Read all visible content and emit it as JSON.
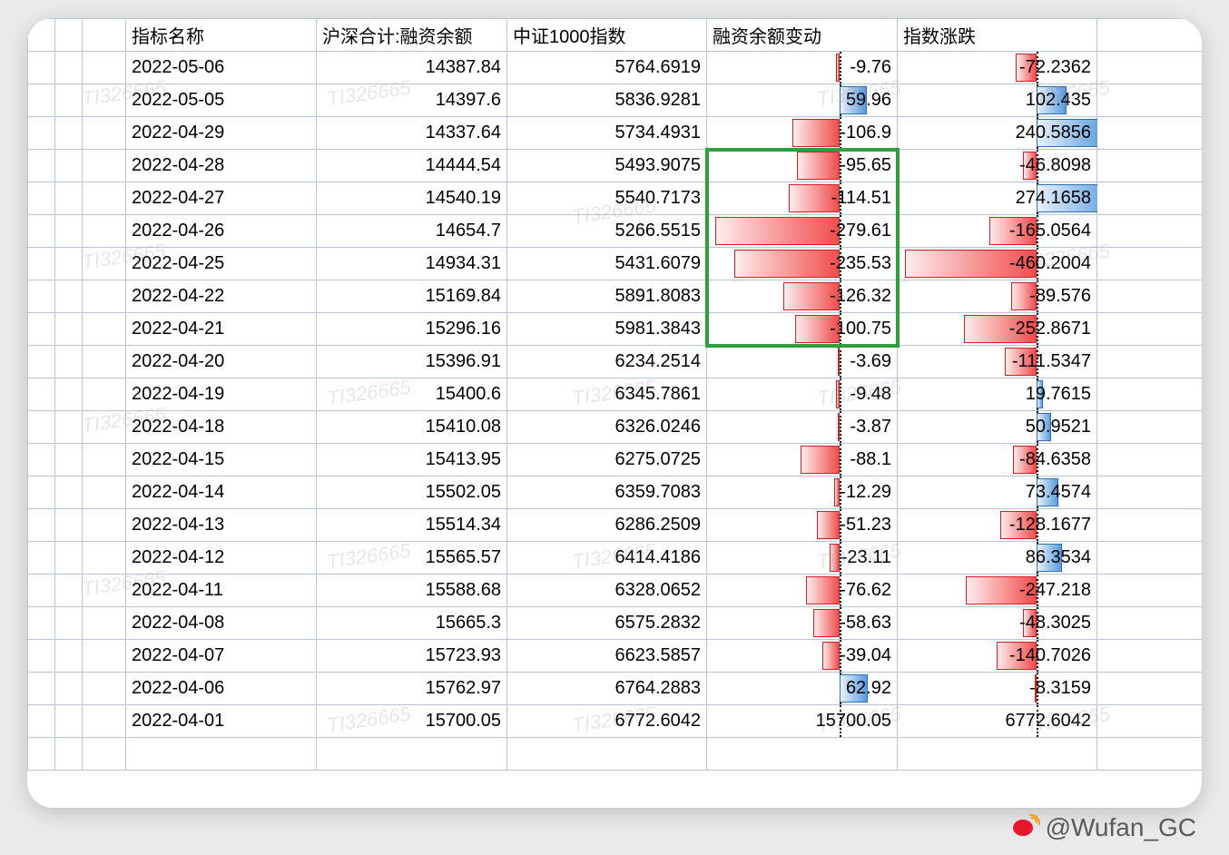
{
  "columns": {
    "c0": "指标名称",
    "c1": "沪深合计:融资余额",
    "c2": "中证1000指数",
    "c3": "融资余额变动",
    "c4": "指数涨跌"
  },
  "rows": [
    {
      "date": "2022-05-06",
      "bal": "14387.84",
      "idx": "5764.6919",
      "chg": -9.76,
      "chg_txt": "-9.76",
      "updn": -72.2362,
      "updn_txt": "-72.2362"
    },
    {
      "date": "2022-05-05",
      "bal": "14397.6",
      "idx": "5836.9281",
      "chg": 59.96,
      "chg_txt": "59.96",
      "updn": 102.435,
      "updn_txt": "102.435"
    },
    {
      "date": "2022-04-29",
      "bal": "14337.64",
      "idx": "5734.4931",
      "chg": -106.9,
      "chg_txt": "-106.9",
      "updn": 240.5856,
      "updn_txt": "240.5856"
    },
    {
      "date": "2022-04-28",
      "bal": "14444.54",
      "idx": "5493.9075",
      "chg": -95.65,
      "chg_txt": "-95.65",
      "updn": -46.8098,
      "updn_txt": "-46.8098"
    },
    {
      "date": "2022-04-27",
      "bal": "14540.19",
      "idx": "5540.7173",
      "chg": -114.51,
      "chg_txt": "-114.51",
      "updn": 274.1658,
      "updn_txt": "274.1658"
    },
    {
      "date": "2022-04-26",
      "bal": "14654.7",
      "idx": "5266.5515",
      "chg": -279.61,
      "chg_txt": "-279.61",
      "updn": -165.0564,
      "updn_txt": "-165.0564"
    },
    {
      "date": "2022-04-25",
      "bal": "14934.31",
      "idx": "5431.6079",
      "chg": -235.53,
      "chg_txt": "-235.53",
      "updn": -460.2004,
      "updn_txt": "-460.2004"
    },
    {
      "date": "2022-04-22",
      "bal": "15169.84",
      "idx": "5891.8083",
      "chg": -126.32,
      "chg_txt": "-126.32",
      "updn": -89.576,
      "updn_txt": "-89.576"
    },
    {
      "date": "2022-04-21",
      "bal": "15296.16",
      "idx": "5981.3843",
      "chg": -100.75,
      "chg_txt": "-100.75",
      "updn": -252.8671,
      "updn_txt": "-252.8671"
    },
    {
      "date": "2022-04-20",
      "bal": "15396.91",
      "idx": "6234.2514",
      "chg": -3.69,
      "chg_txt": "-3.69",
      "updn": -111.5347,
      "updn_txt": "-111.5347"
    },
    {
      "date": "2022-04-19",
      "bal": "15400.6",
      "idx": "6345.7861",
      "chg": -9.48,
      "chg_txt": "-9.48",
      "updn": 19.7615,
      "updn_txt": "19.7615"
    },
    {
      "date": "2022-04-18",
      "bal": "15410.08",
      "idx": "6326.0246",
      "chg": -3.87,
      "chg_txt": "-3.87",
      "updn": 50.9521,
      "updn_txt": "50.9521"
    },
    {
      "date": "2022-04-15",
      "bal": "15413.95",
      "idx": "6275.0725",
      "chg": -88.1,
      "chg_txt": "-88.1",
      "updn": -84.6358,
      "updn_txt": "-84.6358"
    },
    {
      "date": "2022-04-14",
      "bal": "15502.05",
      "idx": "6359.7083",
      "chg": -12.29,
      "chg_txt": "-12.29",
      "updn": 73.4574,
      "updn_txt": "73.4574"
    },
    {
      "date": "2022-04-13",
      "bal": "15514.34",
      "idx": "6286.2509",
      "chg": -51.23,
      "chg_txt": "-51.23",
      "updn": -128.1677,
      "updn_txt": "-128.1677"
    },
    {
      "date": "2022-04-12",
      "bal": "15565.57",
      "idx": "6414.4186",
      "chg": -23.11,
      "chg_txt": "-23.11",
      "updn": 86.3534,
      "updn_txt": "86.3534"
    },
    {
      "date": "2022-04-11",
      "bal": "15588.68",
      "idx": "6328.0652",
      "chg": -76.62,
      "chg_txt": "-76.62",
      "updn": -247.218,
      "updn_txt": "-247.218"
    },
    {
      "date": "2022-04-08",
      "bal": "15665.3",
      "idx": "6575.2832",
      "chg": -58.63,
      "chg_txt": "-58.63",
      "updn": -48.3025,
      "updn_txt": "-48.3025"
    },
    {
      "date": "2022-04-07",
      "bal": "15723.93",
      "idx": "6623.5857",
      "chg": -39.04,
      "chg_txt": "-39.04",
      "updn": -140.7026,
      "updn_txt": "-140.7026"
    },
    {
      "date": "2022-04-06",
      "bal": "15762.97",
      "idx": "6764.2883",
      "chg": 62.92,
      "chg_txt": "62.92",
      "updn": -8.3159,
      "updn_txt": "-8.3159"
    },
    {
      "date": "2022-04-01",
      "bal": "15700.05",
      "idx": "6772.6042",
      "chg": null,
      "chg_txt": "15700.05",
      "updn": null,
      "updn_txt": "6772.6042"
    }
  ],
  "bars": {
    "chg": {
      "center_pct": 70,
      "max_abs": 280,
      "half_width_pct": 66,
      "neg_fill_from": "#fdecec",
      "neg_fill_to": "#f14d4d",
      "neg_border": "#d42020",
      "pos_fill_from": "#e8f1fb",
      "pos_fill_to": "#5a9bdc",
      "pos_border": "#2f6fb3"
    },
    "updn": {
      "center_pct": 70,
      "max_abs": 470,
      "half_width_pct": 68,
      "neg_fill_from": "#fdecec",
      "neg_fill_to": "#f14d4d",
      "neg_border": "#d42020",
      "pos_fill_from": "#e8f1fb",
      "pos_fill_to": "#5a9bdc",
      "pos_border": "#2f6fb3"
    }
  },
  "highlight_box": {
    "row_start": 3,
    "row_end": 8
  },
  "watermark_text": "TI326665",
  "credit": "@Wufan_GC"
}
